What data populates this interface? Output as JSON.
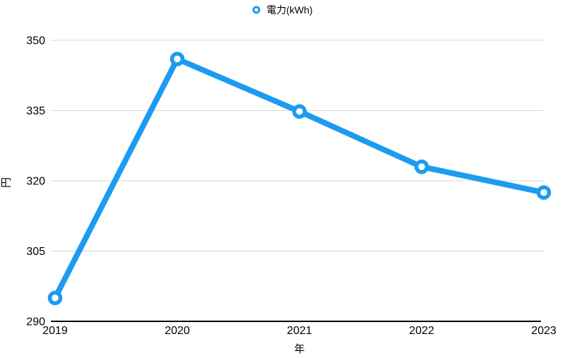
{
  "legend": {
    "marker": "open-circle-icon",
    "label": "電力(kWh)"
  },
  "axes": {
    "y_label": "円",
    "x_label": "年"
  },
  "colors": {
    "line": "#1C9BF0",
    "marker_fill": "#ffffff",
    "grid": "#d8d8d8",
    "axis": "#000000",
    "text": "#000000"
  },
  "chart_data": {
    "type": "line",
    "title": "",
    "categories": [
      "2019",
      "2020",
      "2021",
      "2022",
      "2023"
    ],
    "series": [
      {
        "name": "電力(kWh)",
        "values": [
          295,
          346,
          334.8,
          323,
          317.5
        ]
      }
    ],
    "xlabel": "年",
    "ylabel": "円",
    "ylim": [
      290,
      350
    ],
    "yticks": [
      290,
      305,
      320,
      335,
      350
    ],
    "grid": "horizontal-only",
    "legend_position": "top-center",
    "marker_style": "open-circle",
    "line_color": "#1C9BF0"
  }
}
